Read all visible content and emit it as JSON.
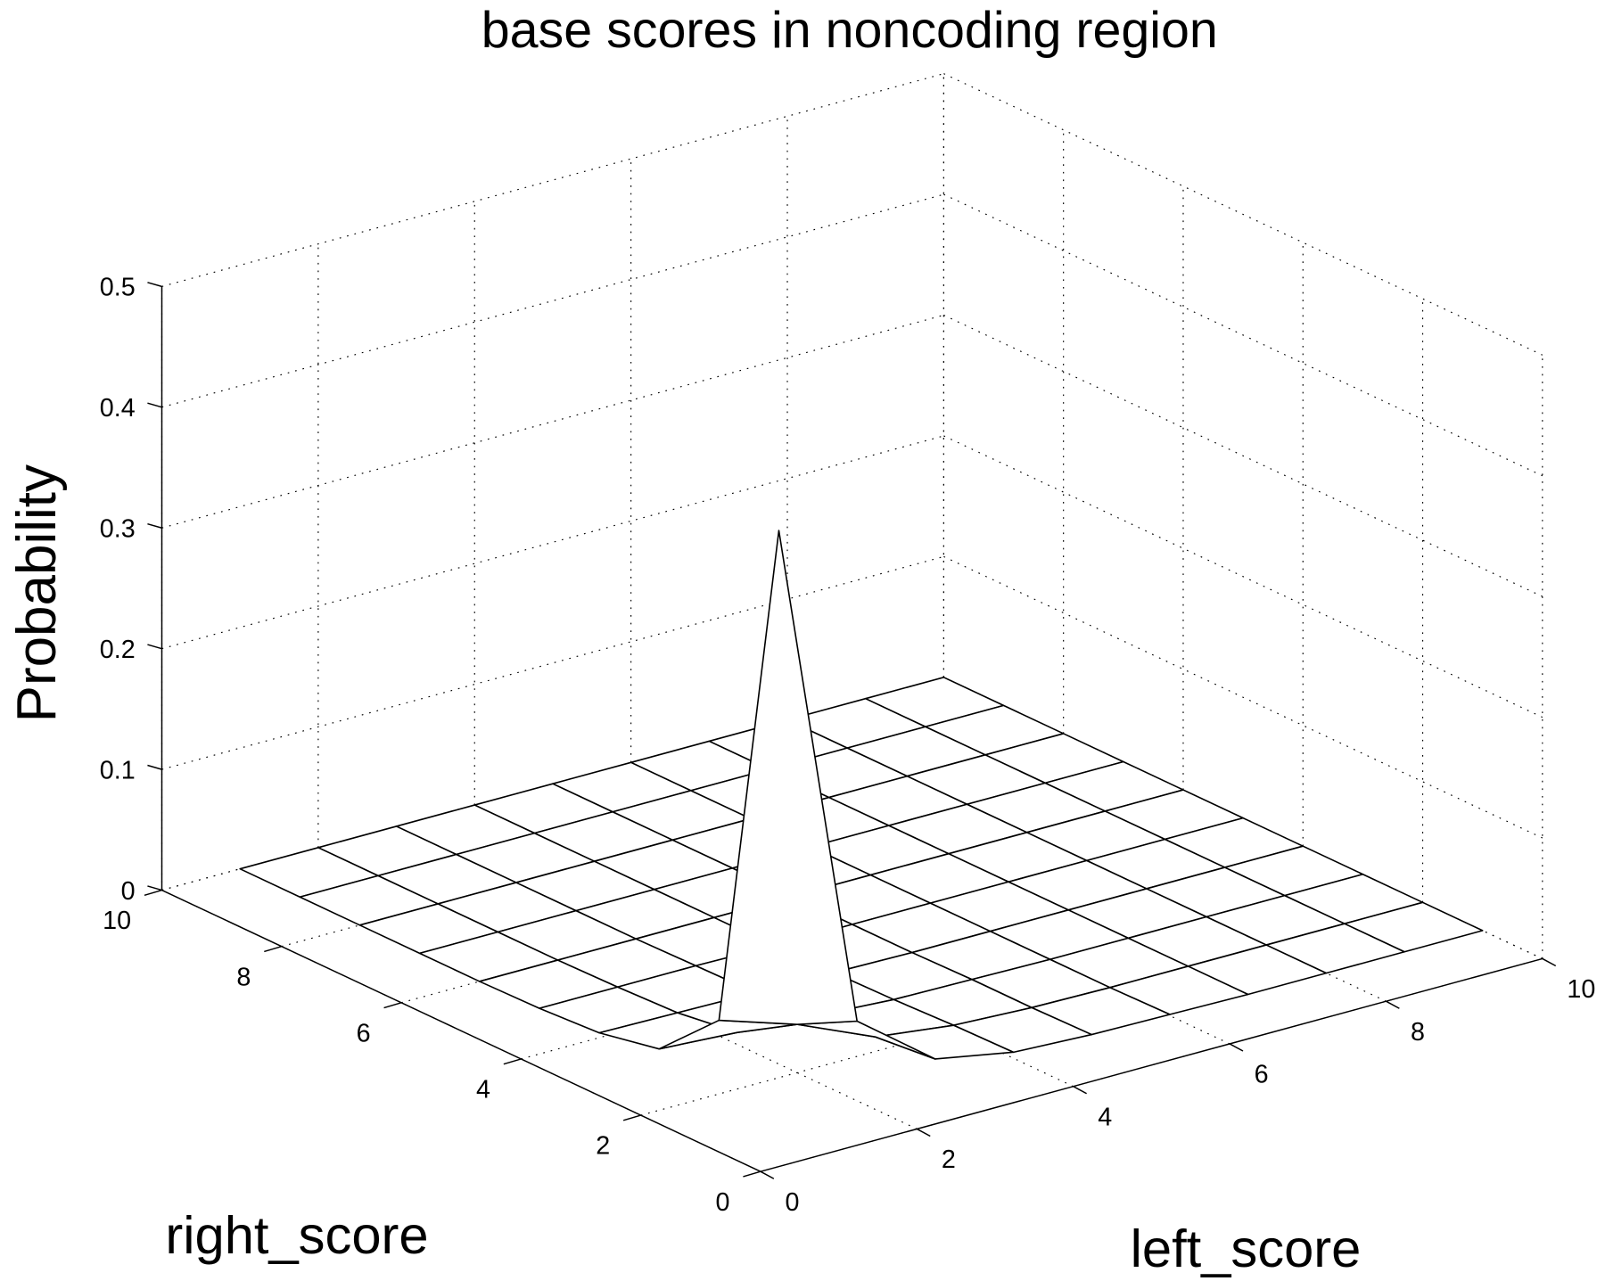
{
  "chart_data": {
    "type": "surface",
    "title": "base scores in noncoding region",
    "xlabel": "left_score",
    "ylabel": "right_score",
    "zlabel": "Probability",
    "xlim": [
      0,
      10
    ],
    "ylim": [
      0,
      10
    ],
    "zlim": [
      0,
      0.5
    ],
    "grid": true,
    "x_ticks": [
      "0",
      "2",
      "4",
      "6",
      "8",
      "10"
    ],
    "y_ticks": [
      "0",
      "2",
      "4",
      "6",
      "8",
      "10"
    ],
    "z_ticks": [
      "0",
      "0.1",
      "0.2",
      "0.3",
      "0.4",
      "0.5"
    ],
    "x": [
      1,
      2,
      3,
      4,
      5,
      6,
      7,
      8,
      9,
      10
    ],
    "y": [
      1,
      2,
      3,
      4,
      5,
      6,
      7,
      8,
      9,
      10
    ],
    "z_rows_by_y": [
      [
        0.49,
        0.066,
        0.017,
        0.005,
        0.002,
        0.001,
        0,
        0,
        0,
        0
      ],
      [
        0.061,
        0.04,
        0.012,
        0.004,
        0.001,
        0,
        0,
        0,
        0,
        0
      ],
      [
        0.014,
        0.01,
        0.006,
        0.002,
        0.001,
        0,
        0,
        0,
        0,
        0
      ],
      [
        0.004,
        0.003,
        0.002,
        0.001,
        0,
        0,
        0,
        0,
        0,
        0
      ],
      [
        0.001,
        0.001,
        0.001,
        0,
        0,
        0,
        0,
        0,
        0,
        0
      ],
      [
        0,
        0,
        0,
        0,
        0,
        0,
        0,
        0,
        0,
        0
      ],
      [
        0,
        0,
        0,
        0,
        0,
        0,
        0,
        0,
        0,
        0
      ],
      [
        0,
        0,
        0,
        0,
        0,
        0,
        0,
        0,
        0,
        0
      ],
      [
        0,
        0,
        0,
        0,
        0,
        0,
        0,
        0,
        0,
        0
      ],
      [
        0,
        0,
        0,
        0,
        0,
        0,
        0,
        0,
        0,
        0
      ]
    ]
  }
}
